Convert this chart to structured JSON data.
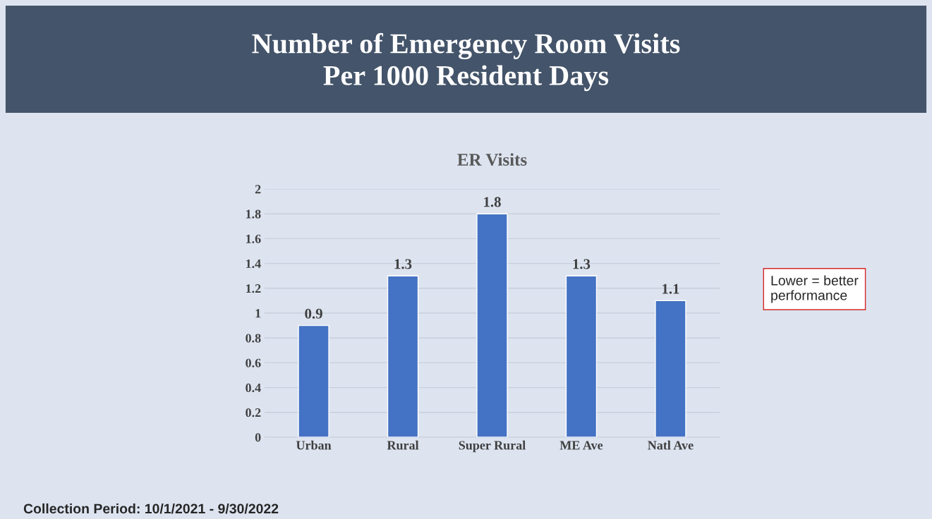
{
  "chart_data": {
    "type": "bar",
    "title": "Number of Emergency Room Visits\nPer 1000 Resident Days",
    "subtitle": "ER Visits",
    "categories": [
      "Urban",
      "Rural",
      "Super Rural",
      "ME Ave",
      "Natl Ave"
    ],
    "values": [
      0.9,
      1.3,
      1.8,
      1.3,
      1.1
    ],
    "color": "#4472c4",
    "ylim": [
      0,
      2
    ],
    "yticks": [
      0,
      0.2,
      0.4,
      0.6,
      0.8,
      1,
      1.2,
      1.4,
      1.6,
      1.8,
      2
    ],
    "grid": "y",
    "data_labels": true,
    "legend": false,
    "annotations": [
      "Lower = better performance",
      "Collection Period: 10/1/2021 - 9/30/2022"
    ]
  }
}
